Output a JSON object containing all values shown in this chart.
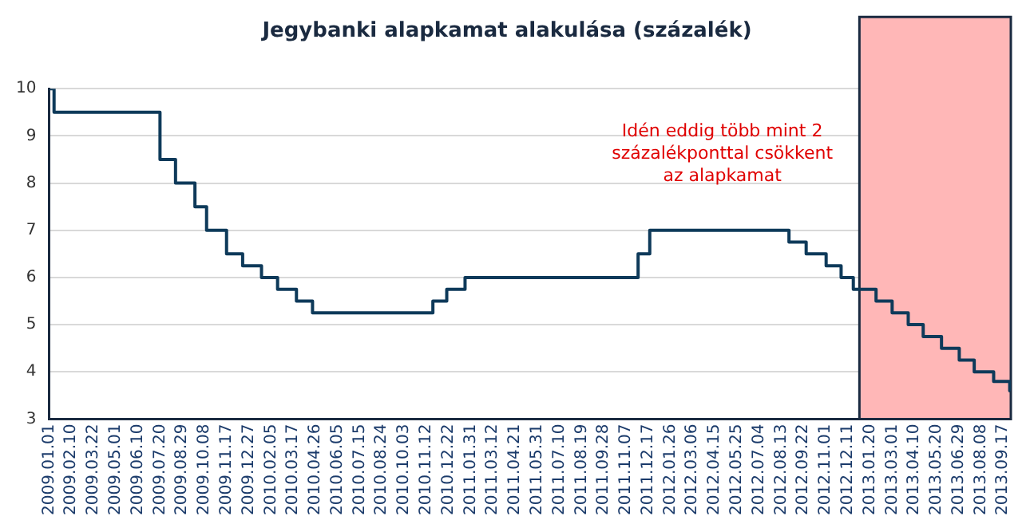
{
  "chart_data": {
    "type": "step",
    "title": "Jegybanki alapkamat alakulása (százalék)",
    "x": [
      "2009-01-01",
      "2009-01-10",
      "2009-07-20",
      "2009-08-17",
      "2009-09-21",
      "2009-10-12",
      "2009-11-17",
      "2009-12-16",
      "2010-01-19",
      "2010-02-17",
      "2010-03-23",
      "2010-04-21",
      "2010-11-24",
      "2010-12-19",
      "2011-01-21",
      "2011-11-29",
      "2011-12-20",
      "2012-08-27",
      "2012-09-27",
      "2012-11-02",
      "2012-11-29",
      "2012-12-21",
      "2013-01-31",
      "2013-03-01",
      "2013-03-30",
      "2013-04-26",
      "2013-05-29",
      "2013-06-30",
      "2013-07-27",
      "2013-08-31",
      "2013-09-29",
      "2013-09-30"
    ],
    "series": [
      {
        "color": "#0e3a5a",
        "values": [
          10,
          9.5,
          8.5,
          8,
          7.5,
          7,
          6.5,
          6.25,
          6,
          5.75,
          5.5,
          5.25,
          5.5,
          5.75,
          6,
          6.5,
          7,
          6.75,
          6.5,
          6.25,
          6,
          5.75,
          5.5,
          5.25,
          5,
          4.75,
          4.5,
          4.25,
          4,
          3.8,
          3.6,
          3.6
        ]
      }
    ],
    "xlim": [
      "2009-01-01",
      "2013-10-01"
    ],
    "xticks": [
      {
        "value": "2009-01-01",
        "label": "2009.01.01"
      },
      {
        "value": "2009-02-10",
        "label": "2009.02.10"
      },
      {
        "value": "2009-03-22",
        "label": "2009.03.22"
      },
      {
        "value": "2009-05-01",
        "label": "2009.05.01"
      },
      {
        "value": "2009-06-10",
        "label": "2009.06.10"
      },
      {
        "value": "2009-07-20",
        "label": "2009.07.20"
      },
      {
        "value": "2009-08-29",
        "label": "2009.08.29"
      },
      {
        "value": "2009-10-08",
        "label": "2009.10.08"
      },
      {
        "value": "2009-11-17",
        "label": "2009.11.17"
      },
      {
        "value": "2009-12-27",
        "label": "2009.12.27"
      },
      {
        "value": "2010-02-05",
        "label": "2010.02.05"
      },
      {
        "value": "2010-03-17",
        "label": "2010.03.17"
      },
      {
        "value": "2010-04-26",
        "label": "2010.04.26"
      },
      {
        "value": "2010-06-05",
        "label": "2010.06.05"
      },
      {
        "value": "2010-07-15",
        "label": "2010.07.15"
      },
      {
        "value": "2010-08-24",
        "label": "2010.08.24"
      },
      {
        "value": "2010-10-03",
        "label": "2010.10.03"
      },
      {
        "value": "2010-11-12",
        "label": "2010.11.12"
      },
      {
        "value": "2010-12-22",
        "label": "2010.12.22"
      },
      {
        "value": "2011-01-31",
        "label": "2011.01.31"
      },
      {
        "value": "2011-03-12",
        "label": "2011.03.12"
      },
      {
        "value": "2011-04-21",
        "label": "2011.04.21"
      },
      {
        "value": "2011-05-31",
        "label": "2011.05.31"
      },
      {
        "value": "2011-07-10",
        "label": "2011.07.10"
      },
      {
        "value": "2011-08-19",
        "label": "2011.08.19"
      },
      {
        "value": "2011-09-28",
        "label": "2011.09.28"
      },
      {
        "value": "2011-11-07",
        "label": "2011.11.07"
      },
      {
        "value": "2011-12-17",
        "label": "2011.12.17"
      },
      {
        "value": "2012-01-26",
        "label": "2012.01.26"
      },
      {
        "value": "2012-03-06",
        "label": "2012.03.06"
      },
      {
        "value": "2012-04-15",
        "label": "2012.04.15"
      },
      {
        "value": "2012-05-25",
        "label": "2012.05.25"
      },
      {
        "value": "2012-07-04",
        "label": "2012.07.04"
      },
      {
        "value": "2012-08-13",
        "label": "2012.08.13"
      },
      {
        "value": "2012-09-22",
        "label": "2012.09.22"
      },
      {
        "value": "2012-11-01",
        "label": "2012.11.01"
      },
      {
        "value": "2012-12-11",
        "label": "2012.12.11"
      },
      {
        "value": "2013-01-20",
        "label": "2013.01.20"
      },
      {
        "value": "2013-03-01",
        "label": "2013.03.01"
      },
      {
        "value": "2013-04-10",
        "label": "2013.04.10"
      },
      {
        "value": "2013-05-20",
        "label": "2013.05.20"
      },
      {
        "value": "2013-06-29",
        "label": "2013.06.29"
      },
      {
        "value": "2013-08-08",
        "label": "2013.08.08"
      },
      {
        "value": "2013-09-17",
        "label": "2013.09.17"
      }
    ],
    "ylim": [
      3,
      10
    ],
    "yticks": [
      3,
      4,
      5,
      6,
      7,
      8,
      9,
      10
    ],
    "grid": "y",
    "legend": false,
    "bands": [
      {
        "axis": "x",
        "from": "2013-01-01",
        "to": "2013-10-01",
        "color": "#ffb7b7"
      }
    ],
    "annotations": [
      "Idén eddig több mint 2 százalékponttal csökkent az alapkamat"
    ]
  }
}
